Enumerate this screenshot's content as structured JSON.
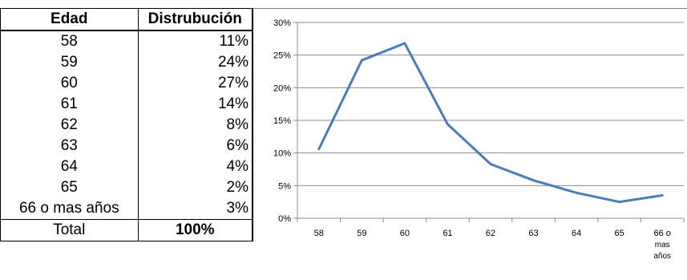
{
  "table": {
    "headers": [
      "Edad",
      "Distrubución"
    ],
    "rows": [
      [
        "58",
        "11%"
      ],
      [
        "59",
        "24%"
      ],
      [
        "60",
        "27%"
      ],
      [
        "61",
        "14%"
      ],
      [
        "62",
        "8%"
      ],
      [
        "63",
        "6%"
      ],
      [
        "64",
        "4%"
      ],
      [
        "65",
        "2%"
      ],
      [
        "66 o mas años",
        "3%"
      ]
    ],
    "total": [
      "Total",
      "100%"
    ]
  },
  "chart_data": {
    "type": "line",
    "categories": [
      "58",
      "59",
      "60",
      "61",
      "62",
      "63",
      "64",
      "65",
      "66 o mas años"
    ],
    "category_lines": [
      [
        "58"
      ],
      [
        "59"
      ],
      [
        "60"
      ],
      [
        "61"
      ],
      [
        "62"
      ],
      [
        "63"
      ],
      [
        "64"
      ],
      [
        "65"
      ],
      [
        "66 o",
        "mas",
        "años"
      ]
    ],
    "series": [
      {
        "values": [
          10.6,
          24.2,
          26.8,
          14.4,
          8.3,
          5.8,
          3.9,
          2.5,
          3.5
        ],
        "color": "#4a7ebb"
      }
    ],
    "y_ticks": [
      "0%",
      "5%",
      "10%",
      "15%",
      "20%",
      "25%",
      "30%"
    ],
    "ylim": [
      0,
      30
    ],
    "grid": true,
    "title": "",
    "xlabel": "",
    "ylabel": ""
  }
}
